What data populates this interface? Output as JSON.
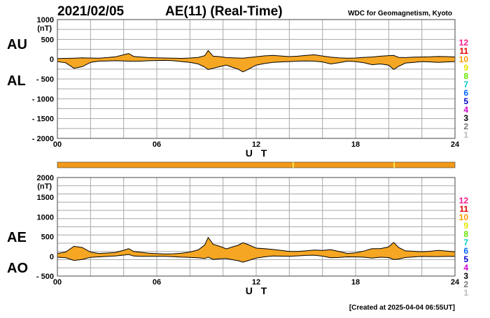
{
  "header": {
    "date": "2021/02/05",
    "title": "AE(11) (Real-Time)",
    "organization": "WDC for Geomagnetism, Kyoto"
  },
  "footer": {
    "created": "[Created at 2025-04-04 06:55UT]"
  },
  "colors": {
    "fill": "#f5a623",
    "line": "#000000",
    "grid": "#a8a8a8",
    "status_bar": "#f29a18",
    "status_tick": "#ffff66"
  },
  "legend": {
    "numbers": [
      "12",
      "11",
      "10",
      "9",
      "8",
      "7",
      "6",
      "5",
      "4",
      "3",
      "2",
      "1"
    ],
    "colors": [
      "#ff1a8c",
      "#e00000",
      "#ff9900",
      "#e6e600",
      "#66e600",
      "#00cccc",
      "#0066ff",
      "#0000cc",
      "#cc00cc",
      "#000000",
      "#777777",
      "#bbbbbb"
    ]
  },
  "chart_data": [
    {
      "type": "area",
      "panel": "AU/AL",
      "title": "",
      "series_labels": [
        "AU",
        "AL"
      ],
      "ylabel": "(nT)",
      "xlabel": "U T",
      "ylim": [
        -2000,
        1000
      ],
      "y_ticks": [
        "1000",
        "500",
        "0",
        "- 500",
        "- 1000",
        "- 1500",
        "- 2000"
      ],
      "x_ticks": [
        "00",
        "06",
        "12",
        "18",
        "24"
      ],
      "x_hours": [
        0,
        0.5,
        1,
        1.5,
        2,
        2.5,
        3,
        3.5,
        4,
        4.3,
        4.6,
        5,
        5.5,
        6,
        6.5,
        7,
        7.5,
        8,
        8.5,
        8.9,
        9.1,
        9.4,
        9.8,
        10.2,
        10.6,
        10.9,
        11.2,
        11.5,
        12,
        12.5,
        13,
        13.5,
        14,
        14.5,
        15,
        15.5,
        16,
        16.5,
        17,
        17.5,
        18,
        18.5,
        19,
        19.5,
        20,
        20.3,
        20.6,
        21,
        21.5,
        22,
        22.5,
        23,
        23.5,
        24
      ],
      "series": [
        {
          "name": "AU",
          "values": [
            15,
            20,
            25,
            35,
            30,
            25,
            40,
            60,
            110,
            145,
            70,
            55,
            40,
            35,
            30,
            25,
            20,
            30,
            45,
            90,
            220,
            75,
            65,
            40,
            35,
            30,
            25,
            40,
            60,
            85,
            95,
            80,
            65,
            75,
            95,
            110,
            80,
            50,
            35,
            25,
            30,
            45,
            55,
            75,
            90,
            95,
            45,
            40,
            50,
            55,
            60,
            70,
            65,
            55
          ]
        },
        {
          "name": "AL",
          "values": [
            -60,
            -90,
            -230,
            -190,
            -80,
            -50,
            -45,
            -40,
            -45,
            -50,
            -55,
            -50,
            -40,
            -35,
            -30,
            -40,
            -60,
            -80,
            -120,
            -200,
            -260,
            -230,
            -190,
            -150,
            -210,
            -250,
            -320,
            -260,
            -150,
            -110,
            -80,
            -70,
            -60,
            -50,
            -45,
            -50,
            -70,
            -120,
            -90,
            -50,
            -60,
            -90,
            -140,
            -120,
            -150,
            -260,
            -180,
            -100,
            -80,
            -60,
            -70,
            -80,
            -70,
            -60
          ]
        }
      ]
    },
    {
      "type": "area",
      "panel": "AE/AO",
      "title": "",
      "series_labels": [
        "AE",
        "AO"
      ],
      "ylabel": "(nT)",
      "xlabel": "U T",
      "ylim": [
        -500,
        2000
      ],
      "y_ticks": [
        "2000",
        "1500",
        "1000",
        "500",
        "0",
        "- 500"
      ],
      "x_ticks": [
        "00",
        "06",
        "12",
        "18",
        "24"
      ],
      "x_hours": [
        0,
        0.5,
        1,
        1.5,
        2,
        2.5,
        3,
        3.5,
        4,
        4.3,
        4.6,
        5,
        5.5,
        6,
        6.5,
        7,
        7.5,
        8,
        8.5,
        8.9,
        9.1,
        9.4,
        9.8,
        10.2,
        10.6,
        10.9,
        11.2,
        11.5,
        12,
        12.5,
        13,
        13.5,
        14,
        14.5,
        15,
        15.5,
        16,
        16.5,
        17,
        17.5,
        18,
        18.5,
        19,
        19.5,
        20,
        20.3,
        20.6,
        21,
        21.5,
        22,
        22.5,
        23,
        23.5,
        24
      ],
      "series": [
        {
          "name": "AE",
          "values": [
            75,
            110,
            255,
            225,
            110,
            75,
            85,
            100,
            155,
            195,
            125,
            105,
            80,
            70,
            60,
            65,
            80,
            110,
            165,
            290,
            480,
            305,
            255,
            190,
            245,
            280,
            345,
            300,
            210,
            195,
            175,
            150,
            125,
            125,
            140,
            160,
            150,
            170,
            125,
            75,
            90,
            135,
            195,
            195,
            240,
            355,
            225,
            140,
            130,
            115,
            130,
            150,
            135,
            115
          ]
        },
        {
          "name": "AO",
          "values": [
            -22,
            -35,
            -102,
            -78,
            -25,
            -12,
            -2,
            10,
            32,
            48,
            8,
            2,
            0,
            0,
            0,
            -8,
            -20,
            -25,
            -38,
            -55,
            -20,
            -78,
            -62,
            -55,
            -88,
            -110,
            -148,
            -110,
            -45,
            -12,
            8,
            5,
            2,
            12,
            25,
            30,
            5,
            -35,
            -28,
            -12,
            -15,
            -22,
            -42,
            -22,
            -30,
            -82,
            -68,
            -30,
            -15,
            -2,
            -5,
            -5,
            -2,
            -2
          ]
        }
      ]
    }
  ]
}
